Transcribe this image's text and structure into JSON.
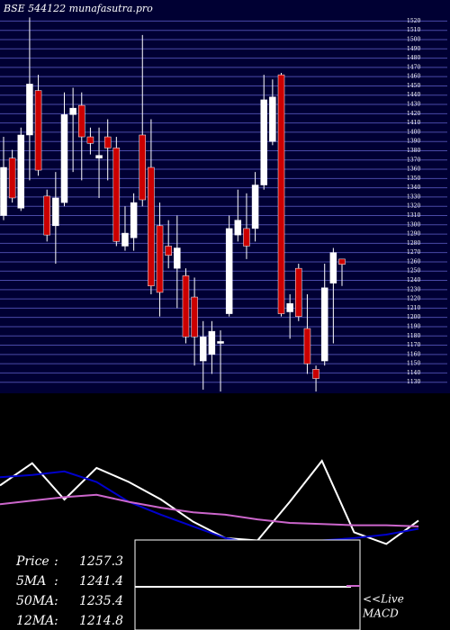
{
  "chart_data": {
    "type": "candlestick",
    "title": "BSE 544122 munafasutra.pro",
    "categories": [
      null,
      null,
      null,
      null,
      null,
      null,
      null,
      null,
      null,
      null,
      null,
      null,
      null,
      null,
      null,
      null,
      null,
      null,
      null,
      null,
      null,
      null,
      null,
      null,
      null,
      null,
      null,
      null,
      null,
      null,
      null,
      null,
      null,
      null,
      null,
      null,
      null,
      null,
      null,
      null
    ],
    "open": [
      1310,
      1372,
      1318,
      1397,
      1445,
      1331,
      1299,
      1324,
      1419,
      1429,
      1395,
      1372,
      1395,
      1383,
      1277,
      1286,
      1397,
      1362,
      1299,
      1277,
      1253,
      1245,
      1222,
      1153,
      1160,
      1172,
      1204,
      1289,
      1296,
      1296,
      1343,
      1390,
      1462,
      1206,
      1253,
      1188,
      1144,
      1153,
      1237,
      1263
    ],
    "high": [
      1395,
      1381,
      1405,
      1524,
      1462,
      1338,
      1357,
      1443,
      1448,
      1443,
      1405,
      1405,
      1414,
      1395,
      1320,
      1334,
      1505,
      1414,
      1324,
      1305,
      1310,
      1253,
      1243,
      1196,
      1196,
      1186,
      1310,
      1338,
      1334,
      1357,
      1462,
      1457,
      1464,
      1225,
      1258,
      1225,
      1148,
      1258,
      1275,
      1263
    ],
    "low": [
      1305,
      1324,
      1315,
      1348,
      1353,
      1282,
      1258,
      1320,
      1357,
      1348,
      1376,
      1329,
      1348,
      1277,
      1272,
      1272,
      1320,
      1225,
      1201,
      1253,
      1210,
      1172,
      1148,
      1122,
      1139,
      1120,
      1201,
      1282,
      1263,
      1282,
      1338,
      1386,
      1201,
      1177,
      1196,
      1139,
      1120,
      1148,
      1172,
      1234
    ],
    "close": [
      1362,
      1329,
      1397,
      1452,
      1359,
      1289,
      1329,
      1419,
      1426,
      1395,
      1388,
      1375,
      1383,
      1282,
      1291,
      1324,
      1327,
      1234,
      1227,
      1267,
      1275,
      1179,
      1179,
      1179,
      1185,
      1174,
      1296,
      1305,
      1277,
      1343,
      1435,
      1438,
      1204,
      1215,
      1201,
      1150,
      1134,
      1232,
      1270,
      1257.3
    ],
    "up_color": "#ffffff",
    "down_color": "#cc0000",
    "ylim": [
      1120,
      1535
    ],
    "yticks": [
      1130,
      1140,
      1150,
      1160,
      1170,
      1180,
      1190,
      1200,
      1210,
      1220,
      1230,
      1240,
      1250,
      1260,
      1270,
      1280,
      1290,
      1300,
      1310,
      1320,
      1330,
      1340,
      1350,
      1360,
      1370,
      1380,
      1390,
      1400,
      1410,
      1420,
      1430,
      1440,
      1450,
      1460,
      1470,
      1480,
      1490,
      1500,
      1510,
      1520
    ],
    "grid": true,
    "indicator_panel": {
      "type": "line",
      "ylim": [
        0,
        100
      ],
      "x": [
        0,
        3,
        6,
        9,
        12,
        15,
        18,
        21,
        24,
        27,
        30,
        33,
        36,
        39
      ],
      "series": [
        {
          "color": "#ffffff",
          "values": [
            62,
            81,
            50,
            77,
            65,
            50,
            31,
            17,
            15,
            48,
            83,
            22,
            12,
            32
          ]
        },
        {
          "color": "#0000cc",
          "values": [
            69,
            71,
            74,
            65,
            48,
            37,
            27,
            17,
            12,
            15,
            15,
            17,
            20,
            25
          ]
        },
        {
          "color": "#cc66cc",
          "values": [
            46,
            49,
            52,
            54,
            48,
            43,
            39,
            37,
            33,
            30,
            29,
            28,
            28,
            27
          ]
        }
      ]
    },
    "indicators": [
      {
        "name": "Price",
        "value": 1257.3
      },
      {
        "name": "5MA",
        "value": 1241.4
      },
      {
        "name": "50MA",
        "value": 1235.4
      },
      {
        "name": "12MA",
        "value": 1214.8
      }
    ],
    "separator": ":",
    "macd_label": [
      "<<Live",
      "MACD"
    ]
  }
}
